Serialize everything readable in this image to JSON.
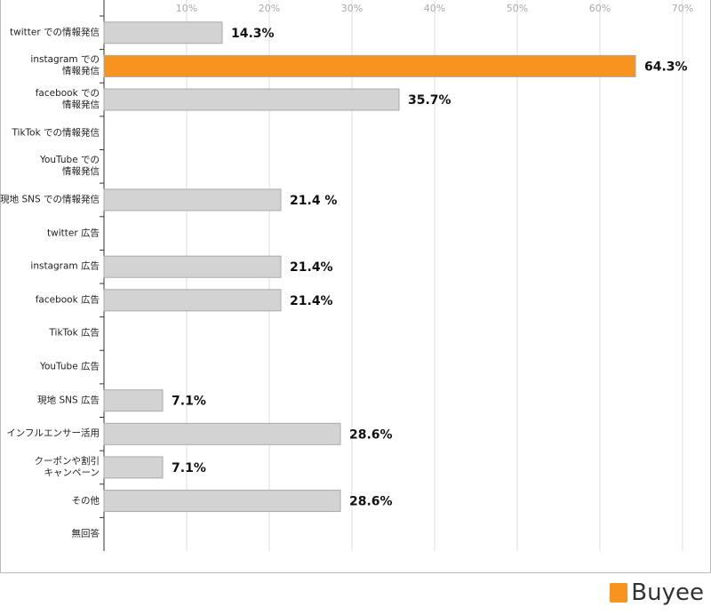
{
  "chart_data": {
    "type": "bar",
    "orientation": "horizontal",
    "categories": [
      "twitter での情報発信",
      "instagram での\n情報発信",
      "facebook での\n情報発信",
      "TikTok での情報発信",
      "YouTube での\n情報発信",
      "現地 SNS での情報発信",
      "twitter 広告",
      "instagram 広告",
      "facebook 広告",
      "TikTok 広告",
      "YouTube 広告",
      "現地 SNS 広告",
      "インフルエンサー活用",
      "クーポンや割引\nキャンペーン",
      "その他",
      "無回答"
    ],
    "values": [
      14.3,
      64.3,
      35.7,
      null,
      null,
      21.4,
      null,
      21.4,
      21.4,
      null,
      null,
      7.1,
      28.6,
      7.1,
      28.6,
      null
    ],
    "value_labels": [
      "14.3%",
      "64.3%",
      "35.7%",
      null,
      null,
      "21.4 %",
      null,
      "21.4%",
      "21.4%",
      null,
      null,
      "7.1%",
      "28.6%",
      "7.1%",
      "28.6%",
      null
    ],
    "colors": [
      "#d3d3d3",
      "#f7931e",
      "#d3d3d3",
      "#d3d3d3",
      "#d3d3d3",
      "#d3d3d3",
      "#d3d3d3",
      "#d3d3d3",
      "#d3d3d3",
      "#d3d3d3",
      "#d3d3d3",
      "#d3d3d3",
      "#d3d3d3",
      "#d3d3d3",
      "#d3d3d3",
      "#d3d3d3"
    ],
    "xlim": [
      0,
      70
    ],
    "xticks": [
      {
        "value": 10,
        "label": "10%"
      },
      {
        "value": 20,
        "label": "20%"
      },
      {
        "value": 30,
        "label": "30%"
      },
      {
        "value": 40,
        "label": "40%"
      },
      {
        "value": 50,
        "label": "50%"
      },
      {
        "value": 60,
        "label": "60%"
      },
      {
        "value": 70,
        "label": "70%"
      }
    ],
    "grid": true
  },
  "brand": "Buyee"
}
